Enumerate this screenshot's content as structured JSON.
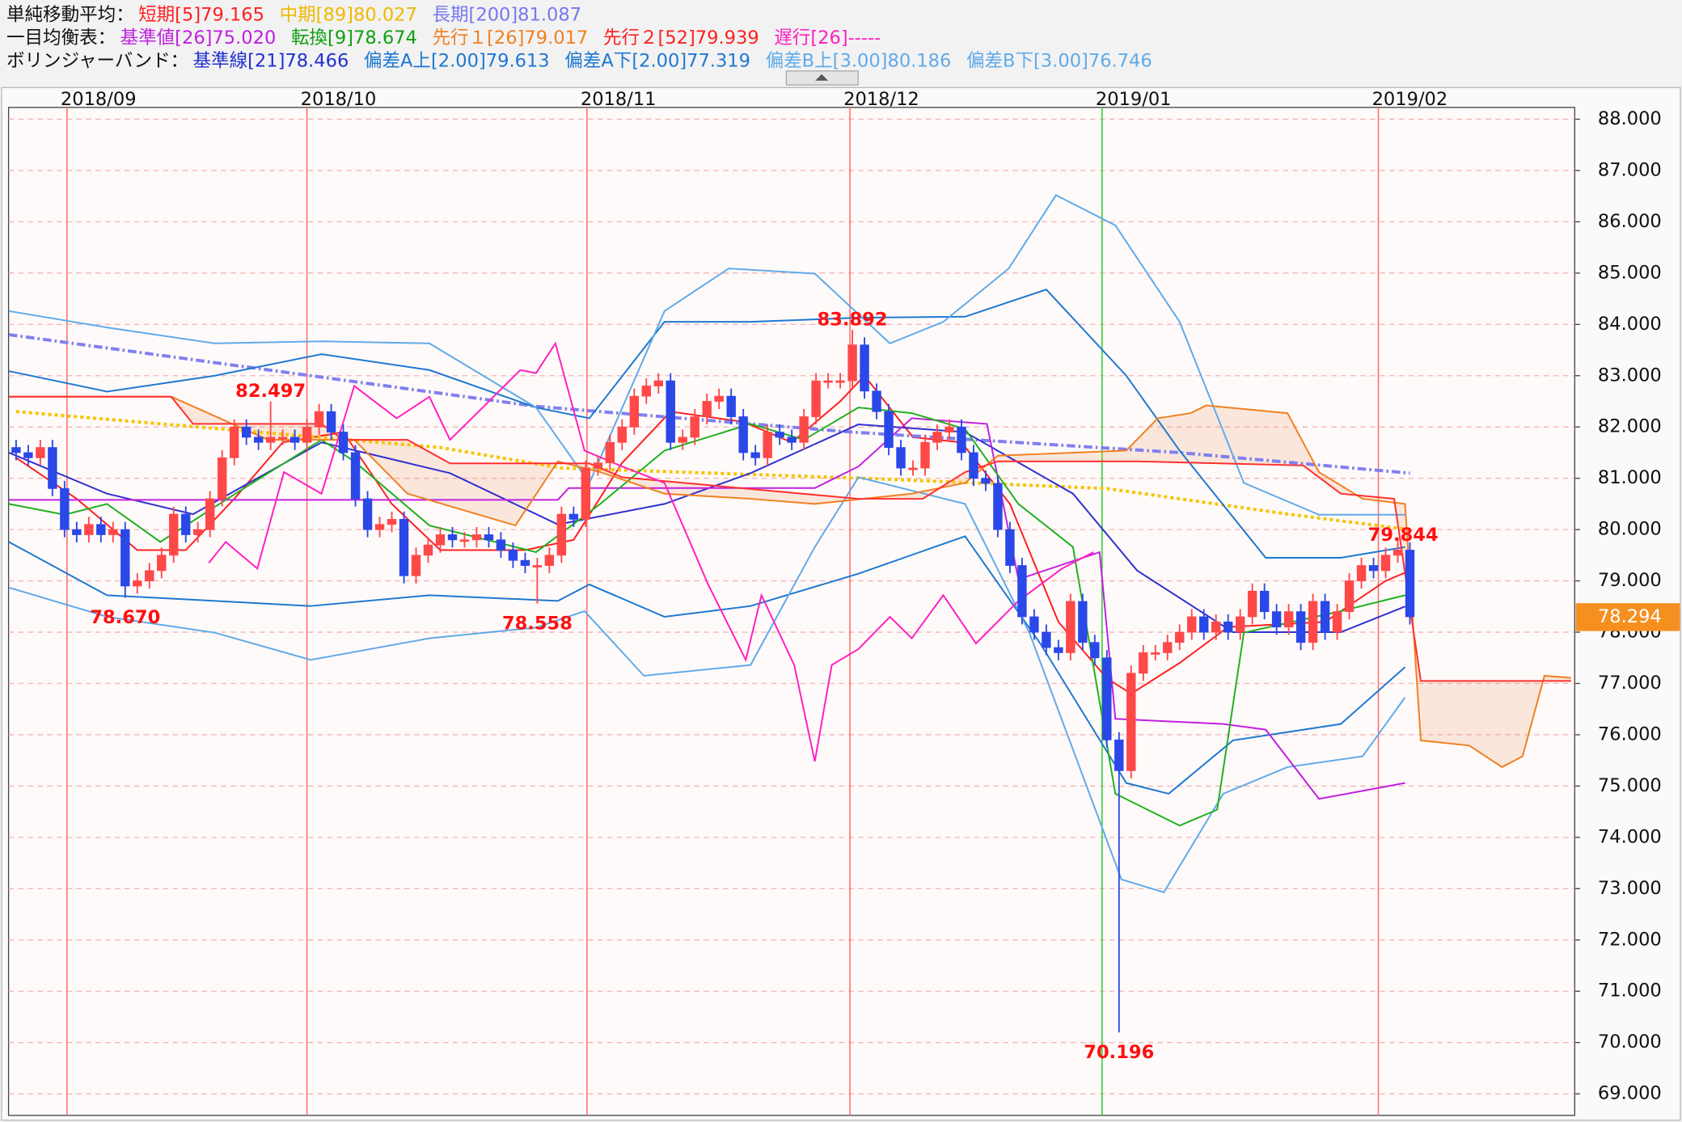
{
  "header": {
    "rows": [
      {
        "label": "単純移動平均：",
        "items": [
          {
            "text": "短期[5]79.165",
            "color": "#ff2020"
          },
          {
            "text": "中期[89]80.027",
            "color": "#f0b800"
          },
          {
            "text": "長期[200]81.087",
            "color": "#7878ee"
          }
        ]
      },
      {
        "label": "一目均衡表：",
        "items": [
          {
            "text": "基準値[26]75.020",
            "color": "#c020e0"
          },
          {
            "text": "転換[9]78.674",
            "color": "#10a010"
          },
          {
            "text": "先行１[26]79.017",
            "color": "#f08020"
          },
          {
            "text": "先行２[52]79.939",
            "color": "#ff2020"
          },
          {
            "text": "遅行[26]-----",
            "color": "#ff20c0"
          }
        ]
      },
      {
        "label": "ボリンジャーバンド：",
        "items": [
          {
            "text": "基準線[21]78.466",
            "color": "#2030d0"
          },
          {
            "text": "偏差A上[2.00]79.613",
            "color": "#1e78d0"
          },
          {
            "text": "偏差A下[2.00]77.319",
            "color": "#1e78d0"
          },
          {
            "text": "偏差B上[3.00]80.186",
            "color": "#60aae8"
          },
          {
            "text": "偏差B下[3.00]76.746",
            "color": "#60aae8"
          }
        ]
      }
    ]
  },
  "chart_data": {
    "type": "candlestick",
    "up_color": "#ff4848",
    "down_color": "#2a48e8",
    "xlim": [
      -0.62,
      128.6
    ],
    "ylim": [
      68.58,
      88.23
    ],
    "grid": true,
    "yticks": [
      {
        "value": 69,
        "label": "69.000"
      },
      {
        "value": 70,
        "label": "70.000"
      },
      {
        "value": 71,
        "label": "71.000"
      },
      {
        "value": 72,
        "label": "72.000"
      },
      {
        "value": 73,
        "label": "73.000"
      },
      {
        "value": 74,
        "label": "74.000"
      },
      {
        "value": 75,
        "label": "75.000"
      },
      {
        "value": 76,
        "label": "76.000"
      },
      {
        "value": 77,
        "label": "77.000"
      },
      {
        "value": 78,
        "label": "78.000"
      },
      {
        "value": 79,
        "label": "79.000"
      },
      {
        "value": 80,
        "label": "80.000"
      },
      {
        "value": 81,
        "label": "81.000"
      },
      {
        "value": 82,
        "label": "82.000"
      },
      {
        "value": 83,
        "label": "83.000"
      },
      {
        "value": 84,
        "label": "84.000"
      },
      {
        "value": 85,
        "label": "85.000"
      },
      {
        "value": 86,
        "label": "86.000"
      },
      {
        "value": 87,
        "label": "87.000"
      },
      {
        "value": 88,
        "label": "88.000"
      }
    ],
    "xticks": [
      {
        "value": 4.2,
        "label": "2018/09",
        "color": "#ff7070"
      },
      {
        "value": 24,
        "label": "2018/10",
        "color": "#ff7070"
      },
      {
        "value": 47.1,
        "label": "2018/11",
        "color": "#ff7070"
      },
      {
        "value": 68.8,
        "label": "2018/12",
        "color": "#ff7070"
      },
      {
        "value": 89.6,
        "label": "2019/01",
        "color": "#30d030"
      },
      {
        "value": 112.4,
        "label": "2019/02",
        "color": "#ff7070"
      }
    ],
    "open": [
      81.6,
      81.5,
      81.4,
      81.6,
      80.8,
      80.0,
      79.9,
      80.1,
      79.9,
      80.0,
      78.9,
      79.0,
      79.2,
      79.5,
      80.3,
      79.9,
      80.0,
      80.6,
      81.4,
      82.0,
      81.8,
      81.7,
      81.8,
      81.8,
      81.7,
      82.0,
      82.3,
      81.9,
      81.5,
      80.6,
      80.0,
      80.1,
      80.2,
      79.1,
      79.5,
      79.7,
      79.9,
      79.8,
      79.8,
      79.9,
      79.8,
      79.6,
      79.4,
      79.3,
      79.3,
      79.5,
      80.3,
      80.2,
      81.2,
      81.3,
      81.7,
      82.0,
      82.6,
      82.8,
      82.9,
      81.7,
      81.8,
      82.2,
      82.5,
      82.6,
      82.2,
      81.5,
      81.4,
      81.9,
      81.8,
      81.7,
      82.2,
      82.9,
      82.9,
      82.9,
      83.6,
      82.7,
      82.3,
      81.6,
      81.2,
      81.2,
      81.7,
      81.9,
      82.0,
      81.5,
      81.0,
      80.9,
      80.0,
      79.3,
      78.3,
      78.0,
      77.7,
      77.6,
      78.6,
      77.8,
      77.5,
      75.9,
      75.3,
      77.2,
      77.6,
      77.6,
      77.8,
      78.0,
      78.3,
      78.0,
      78.2,
      78.0,
      78.3,
      78.8,
      78.4,
      78.1,
      78.4,
      77.8,
      78.6,
      78.0,
      78.4,
      79.0,
      79.3,
      79.2,
      79.5,
      79.6
    ],
    "high": [
      81.75,
      81.65,
      81.75,
      81.75,
      80.95,
      80.15,
      80.25,
      80.25,
      80.15,
      80.15,
      79.15,
      79.35,
      79.65,
      80.45,
      80.45,
      80.15,
      80.75,
      81.55,
      82.15,
      82.15,
      81.95,
      82.497,
      81.95,
      81.95,
      82.15,
      82.45,
      82.45,
      82.05,
      81.65,
      80.75,
      80.25,
      80.35,
      80.35,
      79.65,
      79.85,
      80.05,
      80.05,
      79.95,
      80.05,
      80.05,
      79.95,
      79.75,
      79.55,
      79.45,
      79.65,
      80.45,
      80.45,
      81.35,
      81.45,
      81.85,
      82.15,
      82.75,
      82.95,
      83.05,
      83.05,
      81.95,
      82.35,
      82.65,
      82.75,
      82.75,
      82.35,
      81.65,
      82.05,
      82.05,
      81.95,
      82.35,
      83.05,
      83.05,
      83.05,
      83.892,
      83.75,
      82.85,
      82.45,
      81.75,
      81.35,
      81.85,
      82.05,
      82.15,
      82.15,
      81.65,
      81.15,
      81.05,
      80.15,
      79.45,
      78.45,
      78.15,
      77.85,
      78.75,
      78.75,
      77.95,
      77.65,
      76.05,
      77.35,
      77.75,
      77.75,
      77.95,
      78.15,
      78.45,
      78.45,
      78.35,
      78.35,
      78.45,
      78.95,
      78.95,
      78.55,
      78.55,
      78.55,
      78.75,
      78.75,
      78.55,
      79.15,
      79.45,
      79.45,
      79.65,
      79.844,
      79.75
    ],
    "low": [
      81.35,
      81.25,
      81.25,
      80.65,
      79.85,
      79.75,
      79.75,
      79.75,
      79.75,
      78.67,
      78.75,
      78.85,
      79.05,
      79.35,
      79.75,
      79.75,
      79.85,
      80.45,
      81.25,
      81.65,
      81.55,
      81.55,
      81.65,
      81.55,
      81.55,
      81.85,
      81.75,
      81.35,
      80.45,
      79.85,
      79.85,
      79.95,
      78.95,
      78.95,
      79.35,
      79.55,
      79.65,
      79.65,
      79.65,
      79.65,
      79.45,
      79.25,
      79.15,
      78.558,
      79.15,
      79.35,
      80.05,
      80.05,
      81.05,
      81.15,
      81.55,
      81.85,
      82.45,
      82.65,
      81.55,
      81.55,
      81.65,
      82.05,
      82.35,
      82.05,
      81.35,
      81.25,
      81.25,
      81.65,
      81.55,
      81.55,
      82.05,
      82.75,
      82.75,
      82.75,
      82.55,
      82.15,
      81.45,
      81.05,
      81.05,
      81.05,
      81.55,
      81.75,
      81.35,
      80.85,
      80.75,
      79.85,
      79.15,
      78.15,
      77.85,
      77.55,
      77.45,
      77.45,
      77.65,
      77.35,
      75.75,
      70.196,
      75.15,
      77.05,
      77.45,
      77.45,
      77.65,
      77.85,
      77.85,
      77.85,
      77.85,
      77.85,
      78.15,
      78.25,
      77.95,
      77.95,
      77.65,
      77.65,
      77.85,
      77.85,
      78.25,
      78.85,
      79.05,
      79.05,
      79.35,
      78.15
    ],
    "close": [
      81.5,
      81.4,
      81.6,
      80.8,
      80.0,
      79.9,
      80.1,
      79.9,
      80.0,
      78.9,
      79.0,
      79.2,
      79.5,
      80.3,
      79.9,
      80.0,
      80.6,
      81.4,
      82.0,
      81.8,
      81.7,
      81.8,
      81.8,
      81.7,
      82.0,
      82.3,
      81.9,
      81.5,
      80.6,
      80.0,
      80.1,
      80.2,
      79.1,
      79.5,
      79.7,
      79.9,
      79.8,
      79.8,
      79.9,
      79.8,
      79.6,
      79.4,
      79.3,
      79.3,
      79.5,
      80.3,
      80.2,
      81.2,
      81.3,
      81.7,
      82.0,
      82.6,
      82.8,
      82.9,
      81.7,
      81.8,
      82.2,
      82.5,
      82.6,
      82.2,
      81.5,
      81.4,
      81.9,
      81.8,
      81.7,
      82.2,
      82.9,
      82.9,
      82.9,
      83.6,
      82.7,
      82.3,
      81.6,
      81.2,
      81.2,
      81.7,
      81.9,
      82.0,
      81.5,
      81.0,
      80.9,
      80.0,
      79.3,
      78.3,
      78.0,
      77.7,
      77.6,
      78.6,
      77.8,
      77.5,
      75.9,
      75.3,
      77.2,
      77.6,
      77.6,
      77.8,
      78.0,
      78.3,
      78.0,
      78.2,
      78.0,
      78.3,
      78.8,
      78.4,
      78.1,
      78.4,
      77.8,
      78.6,
      78.0,
      78.4,
      79.0,
      79.3,
      79.2,
      79.5,
      79.6,
      78.3
    ],
    "lines": [
      {
        "color": "#ff2020",
        "style": "solid",
        "x": [
          0,
          5,
          10,
          14,
          18,
          22,
          27,
          31,
          35,
          42,
          46,
          50,
          54,
          60,
          64,
          68,
          70,
          74,
          78,
          82,
          86,
          90,
          92,
          96,
          100,
          108,
          113,
          115
        ],
        "values": [
          81.4,
          80.6,
          79.6,
          79.6,
          80.6,
          81.7,
          81.9,
          80.5,
          79.6,
          79.6,
          79.8,
          81.3,
          82.3,
          82.1,
          81.7,
          82.5,
          83.0,
          81.8,
          81.7,
          80.5,
          78.2,
          77.1,
          76.8,
          77.4,
          78.1,
          78.2,
          79.0,
          79.2
        ]
      },
      {
        "color": "#f8c400",
        "style": "dotted",
        "x": [
          0,
          25,
          35,
          45,
          70,
          90,
          105,
          115
        ],
        "values": [
          82.3,
          81.8,
          81.6,
          81.2,
          81.0,
          80.8,
          80.3,
          80.0
        ]
      },
      {
        "color": "#8080f0",
        "style": "dashdot",
        "x": [
          -0.6,
          43,
          69,
          96,
          115
        ],
        "values": [
          83.8,
          82.4,
          81.9,
          81.5,
          81.1
        ]
      },
      {
        "color": "#3030d0",
        "style": "solid",
        "x": [
          -0.6,
          7.5,
          14.6,
          25.2,
          35.8,
          44.7,
          53.5,
          60.6,
          69.5,
          78.3,
          87.2,
          92.5,
          100.4,
          109.3,
          114.6
        ],
        "values": [
          81.5,
          80.7,
          80.3,
          81.7,
          81.1,
          80.1,
          80.5,
          81.1,
          82.05,
          81.9,
          80.7,
          79.2,
          78.0,
          78.0,
          78.5
        ]
      },
      {
        "color": "#1e78d0",
        "style": "solid",
        "x": [
          -0.6,
          7.5,
          16.4,
          25.2,
          34.1,
          42.9,
          47.3,
          53.5,
          60.6,
          69.5,
          78.3,
          85,
          91.6,
          96,
          103.1,
          109.3,
          114.6
        ],
        "values": [
          83.09,
          82.69,
          83.0,
          83.42,
          83.11,
          82.38,
          82.17,
          84.05,
          84.05,
          84.13,
          84.15,
          84.68,
          83.0,
          81.54,
          79.45,
          79.45,
          79.66
        ]
      },
      {
        "color": "#1e78d0",
        "style": "solid",
        "x": [
          -0.6,
          7.5,
          16.4,
          24.3,
          34.1,
          44.7,
          47.3,
          53.5,
          60.6,
          69.5,
          78.3,
          84.5,
          91.6,
          95.1,
          100.4,
          109.3,
          114.6
        ],
        "values": [
          79.76,
          78.72,
          78.61,
          78.51,
          78.72,
          78.61,
          78.93,
          78.3,
          78.51,
          79.14,
          79.87,
          77.78,
          75.06,
          74.85,
          75.89,
          76.21,
          77.32
        ]
      },
      {
        "color": "#60aae8",
        "style": "solid",
        "x": [
          -0.6,
          7.5,
          16.4,
          25.2,
          34.1,
          42.9,
          47.3,
          53.5,
          58.8,
          65.9,
          72.1,
          76.5,
          81.9,
          85.8,
          90.7,
          96,
          101.3,
          107.5,
          114.6
        ],
        "values": [
          84.26,
          83.94,
          83.63,
          83.67,
          83.63,
          82.38,
          80.91,
          84.26,
          85.09,
          84.99,
          83.63,
          84.05,
          85.09,
          86.52,
          85.93,
          84.05,
          80.91,
          80.29,
          80.29
        ]
      },
      {
        "color": "#60aae8",
        "style": "solid",
        "x": [
          -0.6,
          7.5,
          16.4,
          24.3,
          34.1,
          42.9,
          46.9,
          51.8,
          60.6,
          65.9,
          69.5,
          78.3,
          83.6,
          91.2,
          94.7,
          99.6,
          104.9,
          111.1,
          114.6
        ],
        "values": [
          78.87,
          78.3,
          77.99,
          77.46,
          77.88,
          78.09,
          78.41,
          77.15,
          77.36,
          79.66,
          81.02,
          80.5,
          77.99,
          73.18,
          72.93,
          74.85,
          75.37,
          75.58,
          76.73
        ]
      },
      {
        "color": "#c020e0",
        "style": "solid",
        "x": [
          -0.6,
          44.7,
          45.6,
          65.9,
          69.5,
          73.9,
          80.1,
          82.7,
          89.4,
          90.7,
          99.6,
          103.1,
          107.5,
          114.6
        ],
        "values": [
          80.58,
          80.58,
          80.81,
          80.81,
          81.23,
          82.17,
          82.06,
          79.03,
          79.56,
          76.31,
          76.21,
          76.1,
          74.75,
          75.06
        ]
      },
      {
        "color": "#20b020",
        "style": "solid",
        "x": [
          -0.6,
          4,
          7.5,
          11.9,
          18.1,
          25.2,
          27.9,
          34.1,
          42.9,
          48.2,
          53.5,
          60.6,
          65,
          69.5,
          73.9,
          78.3,
          82.7,
          87.2,
          90.7,
          96,
          99.1,
          101.3,
          109.3,
          114.6
        ],
        "values": [
          80.5,
          80.29,
          80.5,
          79.76,
          80.7,
          81.75,
          81.33,
          80.08,
          79.56,
          80.5,
          81.54,
          82.06,
          81.75,
          82.38,
          82.27,
          81.96,
          80.5,
          79.66,
          74.85,
          74.23,
          74.54,
          77.99,
          78.41,
          78.72
        ]
      },
      {
        "color": "#f08020",
        "style": "solid",
        "cloud": true,
        "x": [
          -0.6,
          12.8,
          20.8,
          27.9,
          32.3,
          41.2,
          44.7,
          48.2,
          53.5,
          60.6,
          65.9,
          73.9,
          78.3,
          81,
          91.6,
          94.2,
          96.9,
          98.2,
          104.9,
          107.5,
          111.1,
          114.6,
          115.9,
          119.9,
          122.6,
          124.3,
          126.1,
          128.3
        ],
        "values": [
          82.59,
          82.59,
          81.75,
          81.75,
          80.7,
          80.08,
          81.33,
          81.12,
          80.7,
          80.6,
          80.5,
          80.7,
          80.91,
          81.44,
          81.54,
          82.17,
          82.27,
          82.42,
          82.27,
          81.12,
          80.6,
          80.5,
          75.89,
          75.79,
          75.37,
          75.58,
          77.15,
          77.11
        ]
      },
      {
        "color": "#ff3030",
        "style": "solid",
        "cloud": true,
        "x": [
          -0.6,
          12.8,
          14.6,
          25.2,
          27,
          32.3,
          35.8,
          47.3,
          50,
          69.5,
          74.8,
          78.3,
          81,
          92.5,
          106.2,
          109.3,
          113.7,
          115.9,
          128.3
        ],
        "values": [
          82.59,
          82.59,
          82.06,
          82.06,
          81.75,
          81.75,
          81.29,
          81.29,
          81.02,
          80.6,
          80.6,
          81.12,
          81.33,
          81.33,
          81.25,
          80.7,
          80.6,
          77.05,
          77.05
        ]
      },
      {
        "color": "#ff20c0",
        "style": "solid",
        "x": [
          15.9,
          17.3,
          19.9,
          22.1,
          25.2,
          27.9,
          31.4,
          34.1,
          35.8,
          38.5,
          41.6,
          42.9,
          44.5,
          46.9,
          50,
          53.5,
          57.1,
          60.2,
          61.5,
          64.2,
          65.9,
          67.3,
          69.5,
          72.1,
          73.9,
          76.5,
          79.2,
          82.7,
          86.3,
          88.9
        ],
        "values": [
          79.35,
          79.76,
          79.24,
          81.12,
          80.7,
          82.8,
          82.17,
          82.59,
          81.75,
          82.38,
          83.11,
          83.05,
          83.63,
          81.54,
          81.23,
          80.91,
          78.93,
          77.46,
          78.72,
          77.36,
          75.48,
          77.36,
          77.67,
          78.3,
          77.88,
          78.72,
          77.78,
          78.61,
          79.24,
          79.56
        ]
      }
    ],
    "annotations": [
      {
        "x": 9,
        "value": 78.67,
        "label": "78.670",
        "position": "below"
      },
      {
        "x": 21,
        "value": 82.497,
        "label": "82.497",
        "position": "above"
      },
      {
        "x": 43,
        "value": 78.558,
        "label": "78.558",
        "position": "below"
      },
      {
        "x": 69,
        "value": 83.892,
        "label": "83.892",
        "position": "above"
      },
      {
        "x": 91,
        "value": 70.196,
        "label": "70.196",
        "position": "below"
      },
      {
        "x": 114,
        "value": 79.844,
        "label": "79.844",
        "position": "right"
      }
    ],
    "last_price": 78.294,
    "last_price_color": "#f59020"
  }
}
